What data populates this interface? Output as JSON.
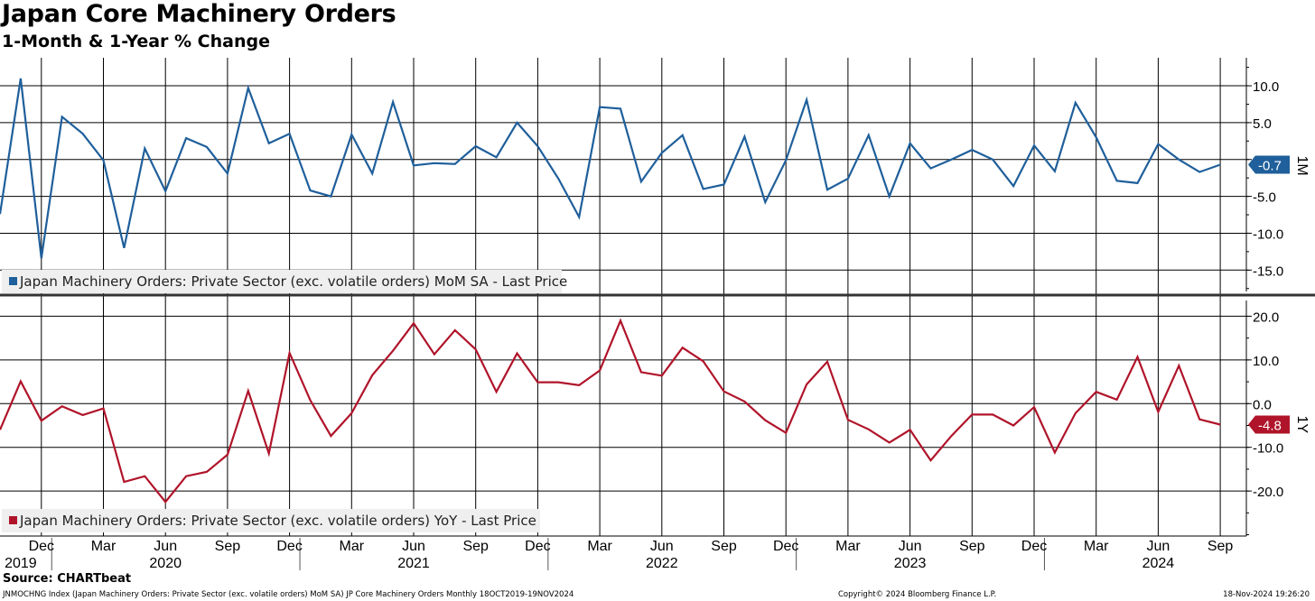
{
  "header": {
    "title": "Japan Core Machinery Orders",
    "subtitle": "1-Month & 1-Year % Change"
  },
  "footer": {
    "source": "Source: CHARTbeat",
    "description": "JNMOCHNG Index (Japan Machinery Orders: Private Sector (exc. volatile orders) MoM SA) JP Core Machinery Orders  Monthly 18OCT2019-19NOV2024",
    "copyright": "Copyright© 2024 Bloomberg Finance L.P.",
    "timestamp": "18-Nov-2024 19:26:20"
  },
  "colors": {
    "mom": "#1f5f9b",
    "yoy": "#b0142a",
    "grid": "#000000",
    "legend_bg": "#efefef"
  },
  "chart_data": [
    {
      "type": "line",
      "panel": "top",
      "panel_label": "1M",
      "series_name": "Japan Machinery Orders: Private Sector (exc. volatile orders) MoM SA - Last Price",
      "last_value_label": "-0.7",
      "start": "2019-10",
      "values": [
        -7.4,
        11.0,
        -13.4,
        5.8,
        3.5,
        -0.1,
        -12.0,
        1.5,
        -4.3,
        2.9,
        1.7,
        -1.9,
        9.7,
        2.2,
        3.5,
        -4.2,
        -5.0,
        3.4,
        -1.9,
        7.8,
        -0.8,
        -0.5,
        -0.6,
        1.8,
        0.3,
        5.0,
        1.8,
        -2.6,
        -7.8,
        7.1,
        6.9,
        -3.0,
        0.9,
        3.3,
        -4.0,
        -3.4,
        3.1,
        -5.8,
        -0.1,
        8.1,
        -4.1,
        -2.6,
        3.3,
        -5.0,
        2.2,
        -1.2,
        0.0,
        1.3,
        0.0,
        -3.6,
        1.9,
        -1.6,
        7.7,
        3.0,
        -2.9,
        -3.2,
        2.1,
        0.0,
        -1.7,
        -0.7
      ],
      "y_ticks": [
        10.0,
        5.0,
        0.0,
        -5.0,
        -10.0,
        -15.0
      ],
      "y_tick_labels": [
        "10.0",
        "5.0",
        "0.0",
        "-5.0",
        "-10.0",
        "-15.0"
      ],
      "ylim": [
        -17.9,
        13.8
      ]
    },
    {
      "type": "line",
      "panel": "bottom",
      "panel_label": "1Y",
      "series_name": "Japan Machinery Orders: Private Sector (exc. volatile orders) YoY - Last Price",
      "last_value_label": "-4.8",
      "start": "2019-10",
      "values": [
        -6.0,
        5.1,
        -3.9,
        -0.6,
        -2.6,
        -1.1,
        -17.9,
        -16.6,
        -22.5,
        -16.6,
        -15.6,
        -11.7,
        2.9,
        -11.4,
        11.6,
        0.8,
        -7.4,
        -2.2,
        6.5,
        12.1,
        18.4,
        11.3,
        16.8,
        12.4,
        2.7,
        11.5,
        4.9,
        4.9,
        4.2,
        7.6,
        19.0,
        7.2,
        6.4,
        12.8,
        9.7,
        2.8,
        0.5,
        -3.8,
        -6.7,
        4.4,
        9.6,
        -3.7,
        -5.9,
        -8.9,
        -6.0,
        -13.0,
        -7.4,
        -2.5,
        -2.5,
        -5.0,
        -0.8,
        -11.2,
        -2.2,
        2.7,
        0.9,
        10.7,
        -1.9,
        8.7,
        -3.6,
        -4.8
      ],
      "y_ticks": [
        20.0,
        10.0,
        0.0,
        -10.0,
        -20.0
      ],
      "y_tick_labels": [
        "20.0",
        "10.0",
        "0.0",
        "-10.0",
        "-20.0"
      ],
      "ylim": [
        -30.3,
        23.6
      ]
    }
  ],
  "x_axis": {
    "month_labels": [
      {
        "label": "Dec",
        "index": 2
      },
      {
        "label": "Mar",
        "index": 5
      },
      {
        "label": "Jun",
        "index": 8
      },
      {
        "label": "Sep",
        "index": 11
      },
      {
        "label": "Dec",
        "index": 14
      },
      {
        "label": "Mar",
        "index": 17
      },
      {
        "label": "Jun",
        "index": 20
      },
      {
        "label": "Sep",
        "index": 23
      },
      {
        "label": "Dec",
        "index": 26
      },
      {
        "label": "Mar",
        "index": 29
      },
      {
        "label": "Jun",
        "index": 32
      },
      {
        "label": "Sep",
        "index": 35
      },
      {
        "label": "Dec",
        "index": 38
      },
      {
        "label": "Mar",
        "index": 41
      },
      {
        "label": "Jun",
        "index": 44
      },
      {
        "label": "Sep",
        "index": 47
      },
      {
        "label": "Dec",
        "index": 50
      },
      {
        "label": "Mar",
        "index": 53
      },
      {
        "label": "Jun",
        "index": 56
      },
      {
        "label": "Sep",
        "index": 59
      }
    ],
    "year_labels": [
      {
        "label": "2019",
        "index": 1
      },
      {
        "label": "2020",
        "index": 8
      },
      {
        "label": "2021",
        "index": 20
      },
      {
        "label": "2022",
        "index": 32
      },
      {
        "label": "2023",
        "index": 44
      },
      {
        "label": "2024",
        "index": 56
      }
    ],
    "year_boundaries": [
      3,
      15,
      27,
      39,
      51
    ]
  }
}
